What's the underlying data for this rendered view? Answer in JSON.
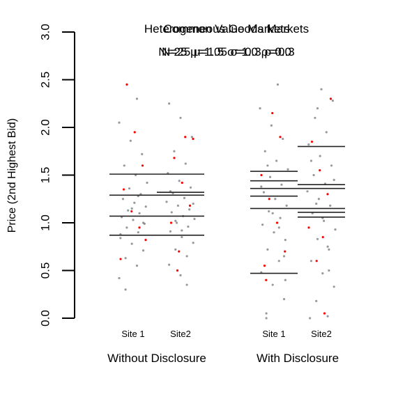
{
  "chart_data": {
    "type": "strip",
    "titles": [
      "Heterogeneous Goods Markets",
      "Common Value Markets"
    ],
    "subtitles": [
      "N=25 μ=1.05 σ=0.3 ρ=0.3",
      "N=25 μ=1.5 σ=1.0 ρ=0.0"
    ],
    "ylabel": "Price (2nd Highest Bid)",
    "ylim": [
      0,
      3
    ],
    "yticks": [
      {
        "value": 0,
        "label": "0.0"
      },
      0.5,
      {
        "value": 1,
        "label": "1.0"
      },
      1.5,
      {
        "value": 2,
        "label": "2.0"
      },
      2.5,
      {
        "value": 3,
        "label": "3.0"
      }
    ],
    "point_color": "#555555",
    "highlight_color": "#ff0000",
    "line_color": "#222222",
    "groups": [
      {
        "label": "Without Disclosure",
        "categories": [
          "Site 1",
          "Site2"
        ],
        "points": [
          [
            0.42,
            0.55,
            0.63,
            0.71,
            0.78,
            0.84,
            0.9,
            0.95,
            0.99,
            1.03,
            1.06,
            1.1,
            1.13,
            1.17,
            1.21,
            1.25,
            1.3,
            1.36,
            1.42,
            1.5,
            1.6,
            1.72,
            1.86,
            2.05,
            2.3,
            0.3,
            1.0,
            1.15,
            0.88,
            1.28
          ],
          [
            0.45,
            0.56,
            0.65,
            0.72,
            0.79,
            0.85,
            0.91,
            0.96,
            1.0,
            1.04,
            1.07,
            1.11,
            1.14,
            1.18,
            1.22,
            1.26,
            1.31,
            1.37,
            1.44,
            1.52,
            1.62,
            1.75,
            1.9,
            2.1,
            2.25,
            0.35,
            1.02,
            1.2,
            0.92,
            1.33
          ]
        ],
        "highlights": [
          [
            0.62,
            0.95,
            1.12,
            1.35,
            1.6,
            1.95,
            2.45,
            0.82
          ],
          [
            0.7,
            1.0,
            1.18,
            1.42,
            1.68,
            1.88,
            1.9,
            0.5
          ]
        ],
        "lines": [
          [
            1.51,
            1.29,
            1.07,
            0.87
          ],
          [
            1.51,
            1.32,
            1.29,
            1.07,
            0.87
          ]
        ]
      },
      {
        "label": "With Disclosure",
        "categories": [
          "Site 1",
          "Site2"
        ],
        "points": [
          [
            0.05,
            0.2,
            0.35,
            0.48,
            0.6,
            0.72,
            0.82,
            0.9,
            0.98,
            1.05,
            1.12,
            1.18,
            1.25,
            1.32,
            1.4,
            1.48,
            1.56,
            1.65,
            1.75,
            1.88,
            2.02,
            2.2,
            2.45,
            0.0,
            0.65,
            1.1,
            1.38,
            0.95,
            1.6,
            0.4
          ],
          [
            0.02,
            0.18,
            0.33,
            0.47,
            0.6,
            0.72,
            0.83,
            0.93,
            1.02,
            1.1,
            1.18,
            1.25,
            1.33,
            1.41,
            1.5,
            1.6,
            1.7,
            1.82,
            1.95,
            2.1,
            2.28,
            2.4,
            0.0,
            0.75,
            1.2,
            1.45,
            1.05,
            1.65,
            0.5,
            2.2
          ]
        ],
        "highlights": [
          [
            0.4,
            0.7,
            1.0,
            1.25,
            1.5,
            1.9,
            2.15,
            0.55
          ],
          [
            0.05,
            0.6,
            0.95,
            1.3,
            1.55,
            1.85,
            2.3,
            0.85
          ]
        ],
        "lines": [
          [
            1.54,
            1.44,
            1.36,
            1.28,
            1.15,
            0.47
          ],
          [
            1.8,
            1.4,
            1.36,
            1.15,
            1.11,
            1.06
          ]
        ]
      }
    ]
  }
}
